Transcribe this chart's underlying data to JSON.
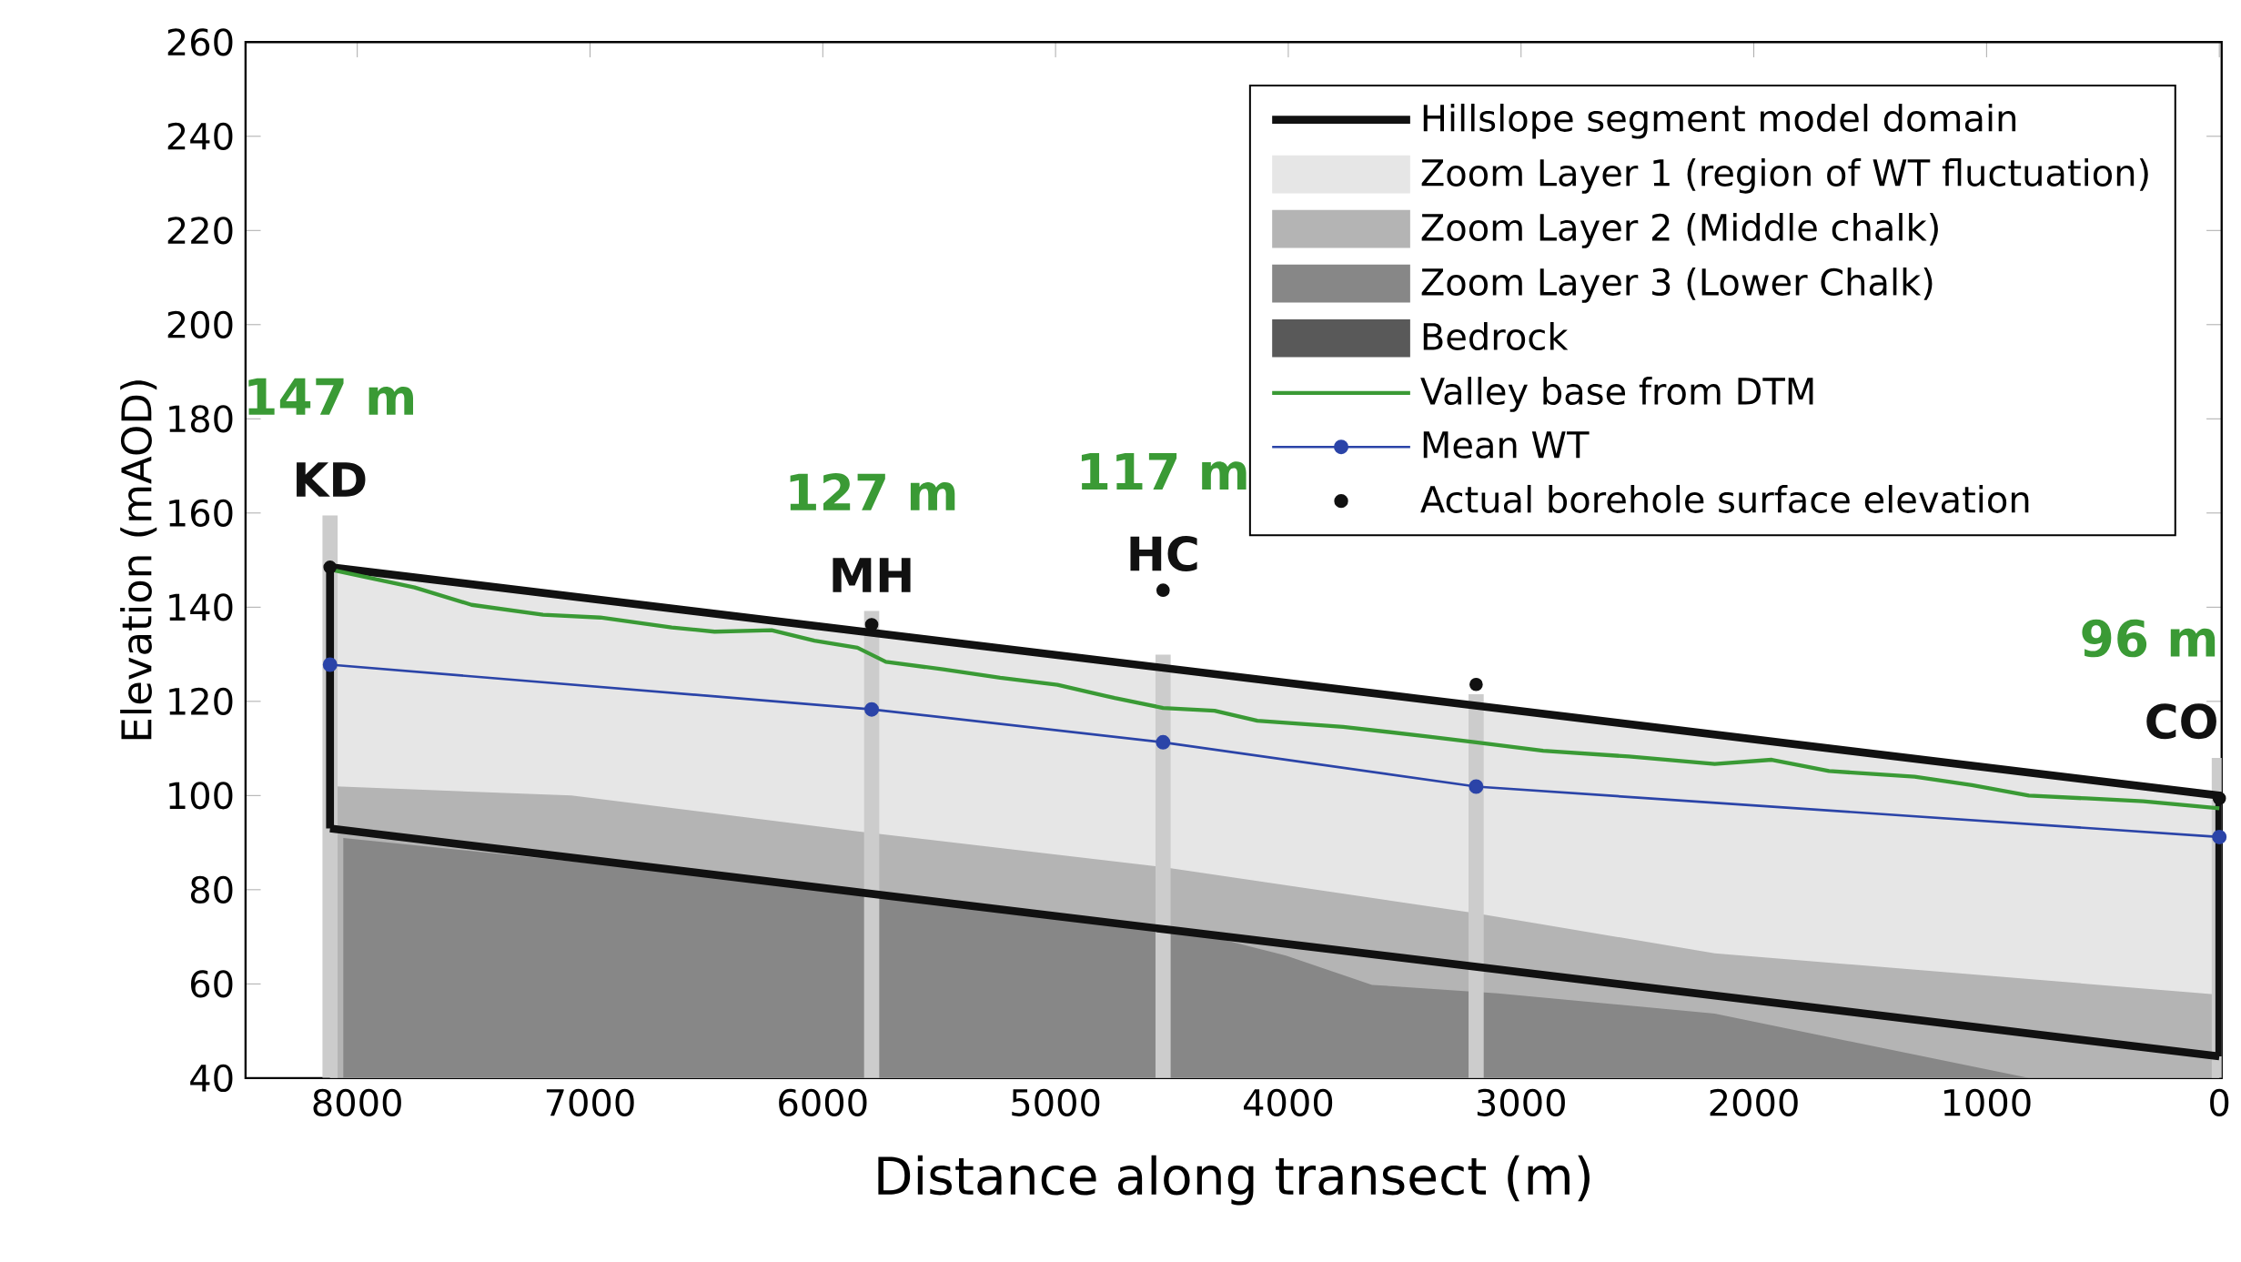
{
  "chart_data": {
    "type": "line",
    "xlabel": "Distance along transect (m)",
    "ylabel": "Elevation (mAOD)",
    "xlim": [
      8480,
      -10
    ],
    "xticks": [
      8000,
      7000,
      6000,
      5000,
      4000,
      3000,
      2000,
      1000,
      0
    ],
    "ylim": [
      40,
      260
    ],
    "yticks": [
      40,
      60,
      80,
      100,
      120,
      140,
      160,
      180,
      200,
      220,
      240,
      260
    ],
    "grid": false,
    "legend": "top right",
    "series": [
      {
        "name": "Hillslope segment model domain",
        "type": "line",
        "color": "#111111",
        "x": [
          8117,
          8117,
          0,
          0
        ],
        "values": [
          93,
          148.5,
          100,
          44.6
        ]
      },
      {
        "name": "Zoom Layer 1 (region of WT fluctuation)",
        "type": "area",
        "color": "#e6e6e6",
        "x": [
          8117,
          0
        ],
        "values": [
          148.5,
          100
        ]
      },
      {
        "name": "Zoom Layer 2 (Middle chalk)",
        "type": "area",
        "color": "#b4b4b4",
        "x": [
          8117,
          7080,
          5850,
          4538,
          3193,
          2168,
          0
        ],
        "values": [
          102,
          100,
          92.4,
          84.8,
          75,
          66.5,
          57.7
        ]
      },
      {
        "name": "Zoom Layer 3 (Lower Chalk)",
        "type": "area",
        "color": "#878787",
        "x": [
          8060,
          5700,
          4450,
          4010,
          3640,
          3100,
          2168,
          818
        ],
        "values": [
          91,
          79,
          71.5,
          66,
          59.8,
          58,
          53.7,
          40
        ]
      },
      {
        "name": "Bedrock",
        "type": "area",
        "color": "#595959"
      },
      {
        "name": "Valley base from DTM",
        "color": "#3a9a35",
        "x": [
          8117,
          7754,
          7509,
          7202,
          6956,
          6649,
          6465,
          6220,
          6036,
          5851,
          5729,
          5483,
          5238,
          4992,
          4746,
          4538,
          4317,
          4133,
          3764,
          3396,
          3193,
          2905,
          2537,
          2168,
          1923,
          1677,
          1309,
          1063,
          818,
          572,
          327,
          0
        ],
        "values": [
          148,
          144.2,
          140.5,
          138.4,
          137.8,
          135.7,
          134.8,
          135.1,
          132.9,
          131.4,
          128.4,
          126.8,
          125,
          123.5,
          120.7,
          118.6,
          118,
          115.9,
          114.6,
          112.5,
          111.3,
          109.5,
          108.3,
          106.7,
          107.6,
          105.2,
          104,
          102.2,
          100,
          99.4,
          98.8,
          97.3
        ]
      },
      {
        "name": "Mean WT",
        "type": "line",
        "marker": "circle",
        "color": "#2b44a8",
        "x": [
          8117,
          5790,
          4538,
          3193,
          0
        ],
        "values": [
          127.8,
          118.3,
          111.3,
          101.9,
          91.2
        ]
      },
      {
        "name": "Actual borehole surface elevation",
        "type": "scatter",
        "marker": "circle",
        "color": "#111111",
        "x": [
          8117,
          5790,
          4538,
          3193,
          0
        ],
        "values": [
          148.5,
          136.3,
          143.6,
          123.6,
          99.4
        ]
      },
      {
        "type": "line",
        "color": "#111111",
        "x": [
          0,
          8117
        ],
        "values": [
          44.6,
          93
        ]
      },
      {
        "type": "bar",
        "color": "#cccccc",
        "x": [
          8117,
          5790,
          4538,
          3193,
          0
        ],
        "values": [
          159.5,
          139.2,
          129.9,
          121.5,
          108
        ]
      }
    ],
    "annotations": [
      {
        "text": "KD",
        "x": 8117,
        "y": 159.5
      },
      {
        "text": "147 m",
        "x": 8117,
        "y": 159.5
      },
      {
        "text": "MH",
        "x": 5790,
        "y": 139.2
      },
      {
        "text": "127 m",
        "x": 5790,
        "y": 139.2
      },
      {
        "text": "HC",
        "x": 4538,
        "y": 143.6
      },
      {
        "text": "117 m",
        "x": 4538,
        "y": 143.6
      },
      {
        "text": "CO",
        "x": 0,
        "y": 108
      },
      {
        "text": "96 m",
        "x": 0,
        "y": 108
      }
    ]
  }
}
